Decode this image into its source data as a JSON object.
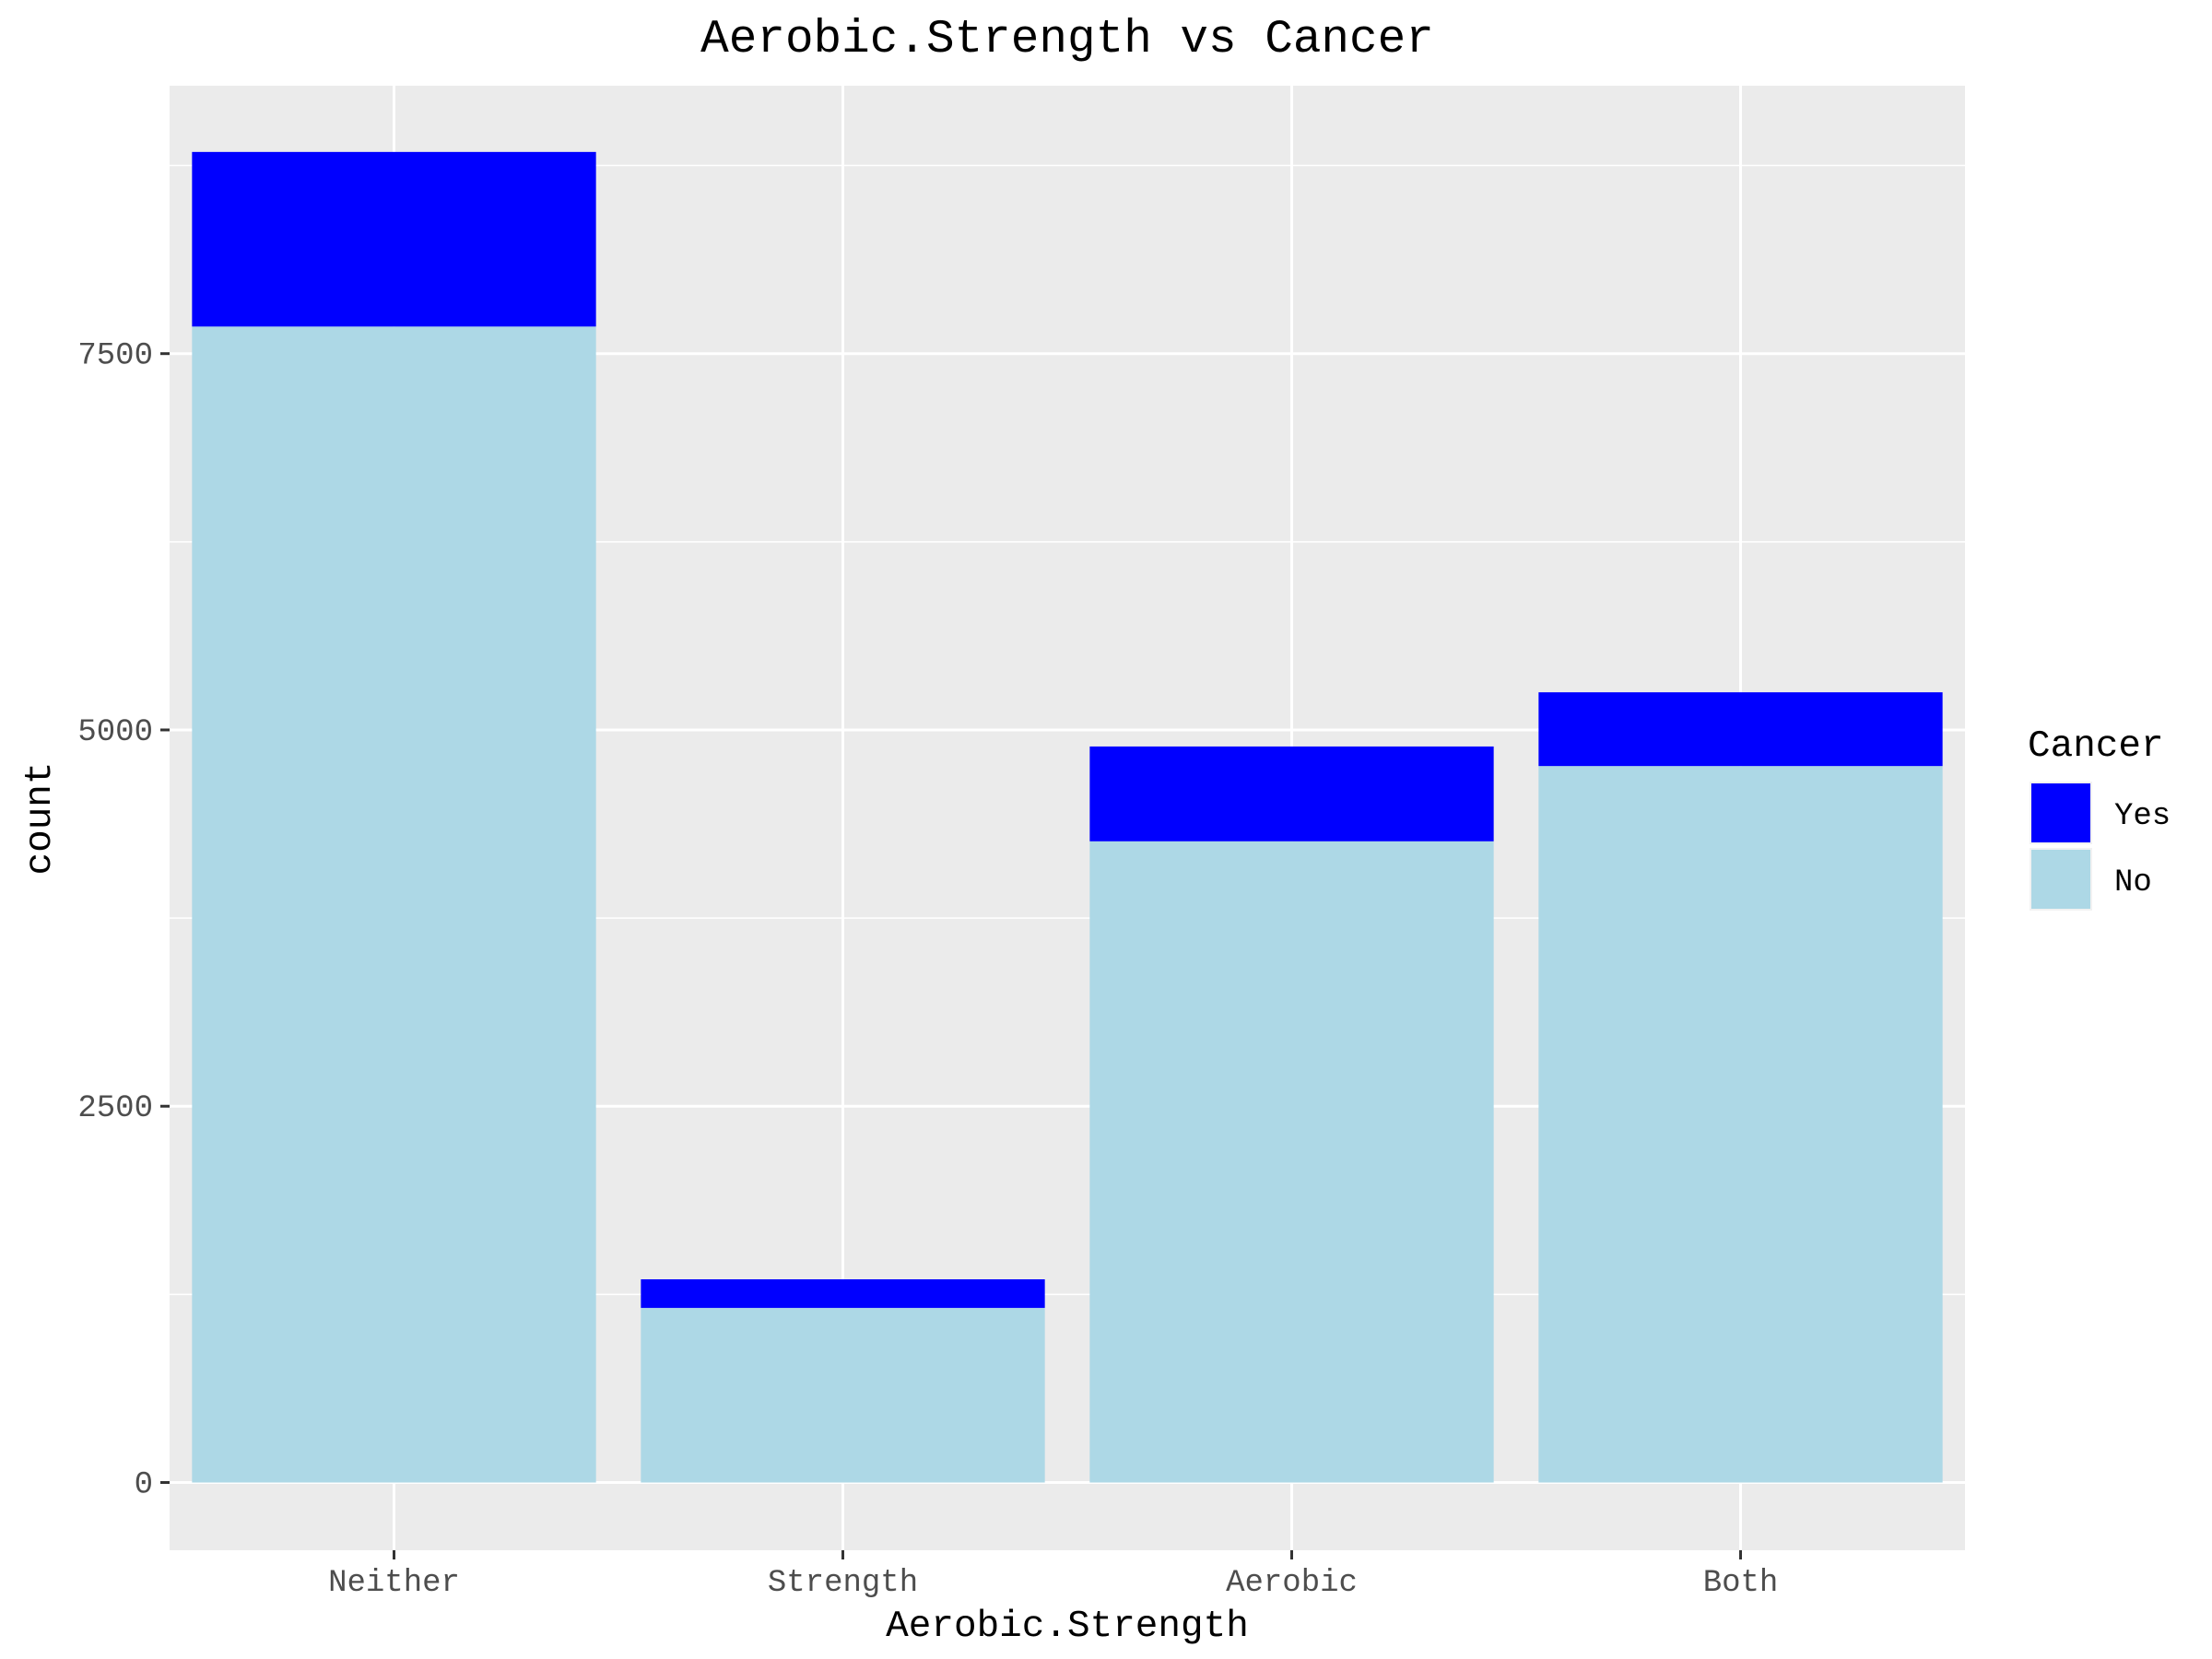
{
  "chart_data": {
    "type": "bar",
    "stacked": true,
    "title": "Aerobic.Strength vs Cancer",
    "xlabel": "Aerobic.Strength",
    "ylabel": "count",
    "categories": [
      "Neither",
      "Strength",
      "Aerobic",
      "Both"
    ],
    "series": [
      {
        "name": "No",
        "color": "#add8e6",
        "values": [
          7680,
          1160,
          4260,
          4760
        ]
      },
      {
        "name": "Yes",
        "color": "#0000ff",
        "values": [
          1160,
          190,
          630,
          490
        ]
      }
    ],
    "ylim": [
      -450,
      9280
    ],
    "yticks": [
      0,
      2500,
      5000,
      7500
    ],
    "ytick_labels": [
      "0",
      "2500",
      "5000",
      "7500"
    ],
    "grid": true,
    "panel_background": "#ebebeb",
    "legend": {
      "title": "Cancer",
      "position": "right",
      "items": [
        {
          "label": "Yes",
          "color": "#0000ff"
        },
        {
          "label": "No",
          "color": "#add8e6"
        }
      ]
    }
  }
}
